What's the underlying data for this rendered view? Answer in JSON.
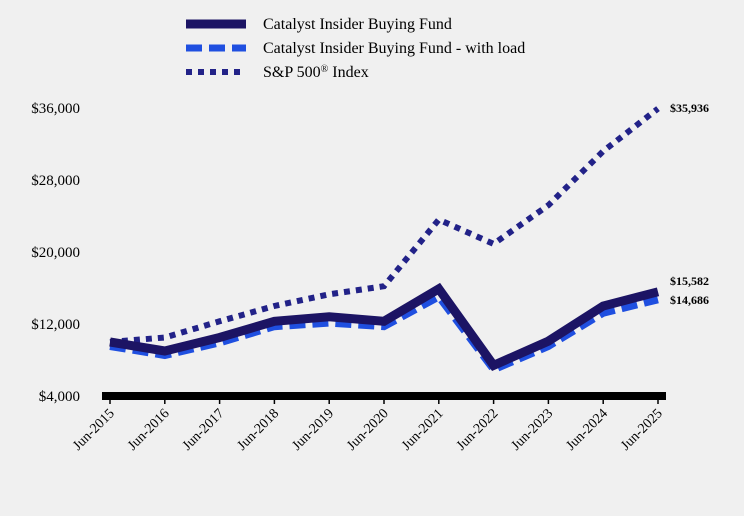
{
  "chart_data": {
    "type": "line",
    "categories": [
      "Jun-2015",
      "Jun-2016",
      "Jun-2017",
      "Jun-2018",
      "Jun-2019",
      "Jun-2020",
      "Jun-2021",
      "Jun-2022",
      "Jun-2023",
      "Jun-2024",
      "Jun-2025"
    ],
    "series": [
      {
        "name": "Catalyst Insider Buying Fund",
        "color": "#1c1464",
        "style": "solid",
        "values": [
          10000,
          9000,
          10500,
          12300,
          12800,
          12300,
          15900,
          7400,
          10100,
          14000,
          15582
        ],
        "end_label": "$15,582"
      },
      {
        "name": "Catalyst Insider Buying Fund - with load",
        "color": "#1f4fe0",
        "style": "dashed",
        "values": [
          9500,
          8500,
          9900,
          11700,
          12100,
          11700,
          15000,
          6900,
          9500,
          13200,
          14686
        ],
        "end_label": "$14,686"
      },
      {
        "name": "S&P 500",
        "name_sup": "®",
        "name_suffix": " Index",
        "color": "#222288",
        "style": "dotted",
        "values": [
          10000,
          10500,
          12300,
          14000,
          15300,
          16200,
          23600,
          20900,
          25200,
          31200,
          35936
        ],
        "end_label": "$35,936"
      }
    ],
    "y_ticks": [
      "$4,000",
      "$12,000",
      "$20,000",
      "$28,000",
      "$36,000"
    ],
    "y_tick_values": [
      4000,
      12000,
      20000,
      28000,
      36000
    ],
    "ylim": [
      4000,
      36000
    ],
    "grid": false,
    "legend": "top-left"
  }
}
